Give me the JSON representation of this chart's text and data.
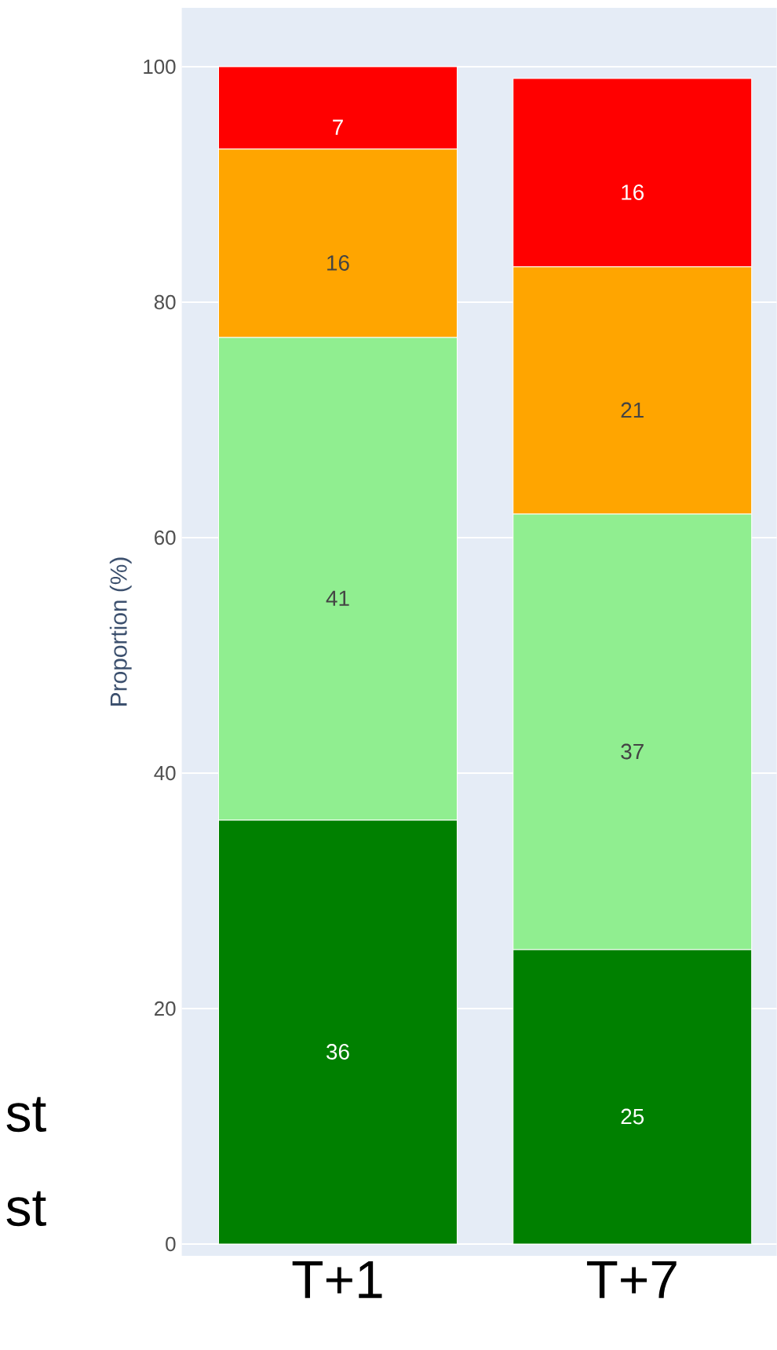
{
  "chart_data": {
    "type": "bar",
    "stacked": true,
    "ylabel": "Proportion (%)",
    "categories": [
      "T+1",
      "T+7"
    ],
    "series": [
      {
        "color": "#008000",
        "values": [
          36,
          25
        ]
      },
      {
        "color": "#90ee90",
        "values": [
          41,
          37
        ]
      },
      {
        "color": "#ffa500",
        "values": [
          16,
          21
        ]
      },
      {
        "color": "#ff0000",
        "values": [
          7,
          16
        ]
      }
    ],
    "ylim": [
      -1,
      105
    ],
    "yticks": [
      0,
      20,
      40,
      60,
      80,
      100
    ],
    "grid": "y",
    "data_labels": true,
    "annotations": [
      "st",
      "st"
    ]
  }
}
